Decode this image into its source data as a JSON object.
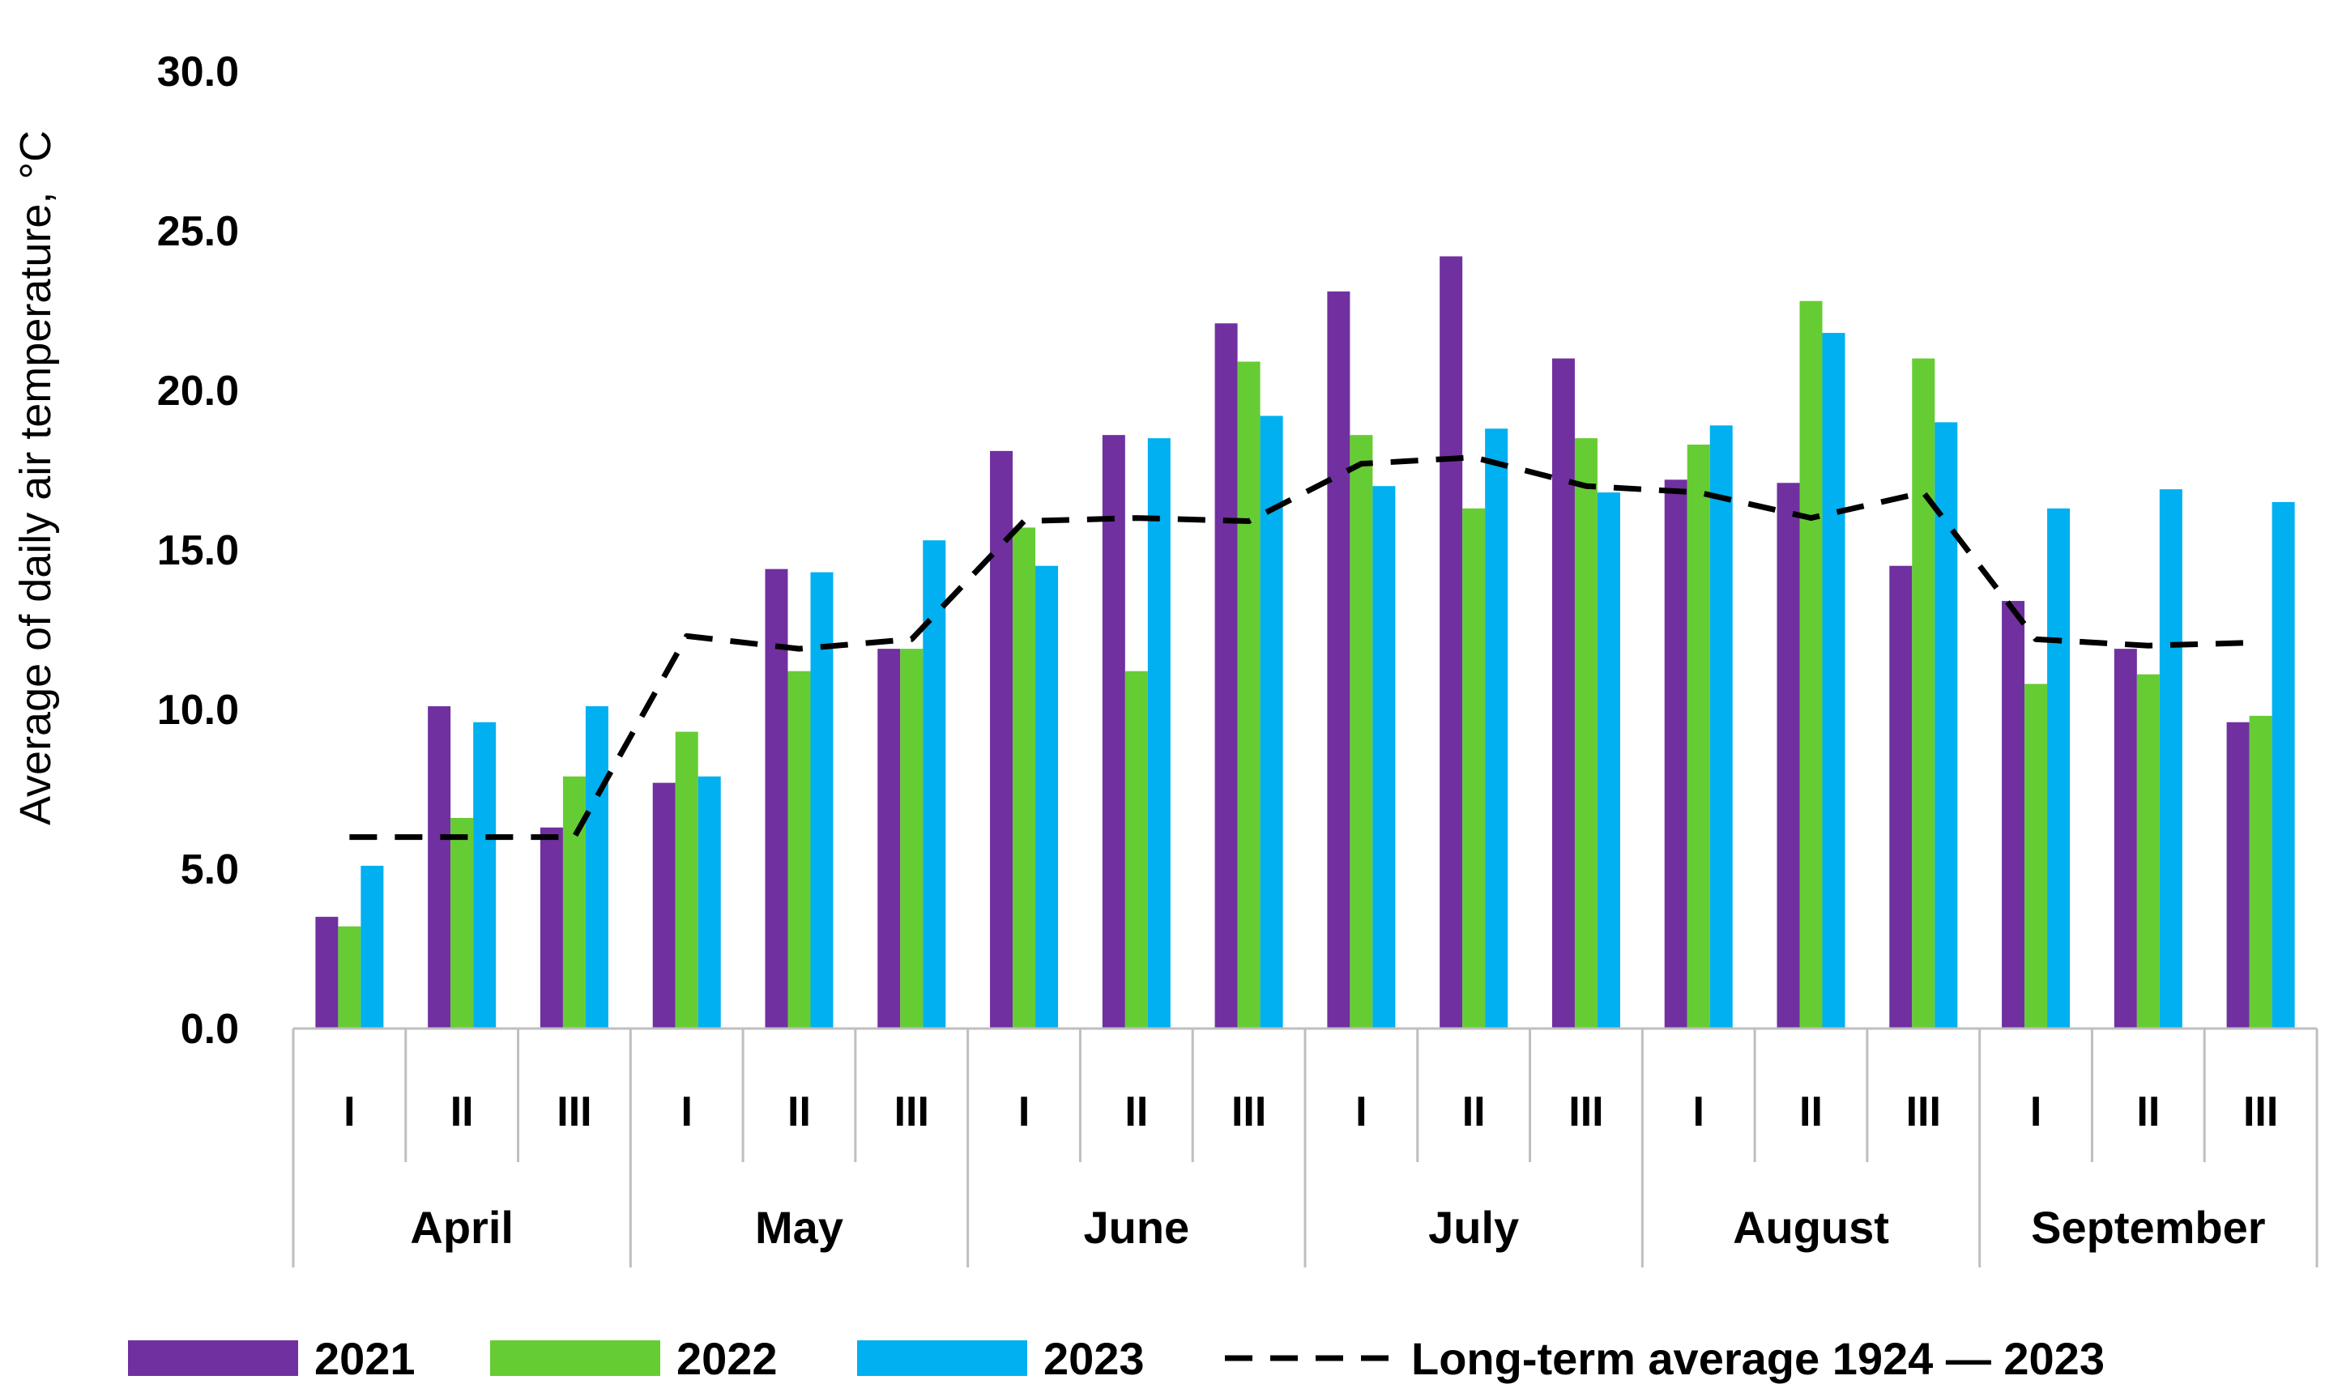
{
  "chart_data": {
    "type": "bar",
    "ylabel": "Average of daily air temperature, °C",
    "ylim": [
      0,
      30
    ],
    "yticks": [
      "0.0",
      "5.0",
      "10.0",
      "15.0",
      "20.0",
      "25.0",
      "30.0"
    ],
    "months": [
      "April",
      "May",
      "June",
      "July",
      "August",
      "September"
    ],
    "dekads": [
      "I",
      "II",
      "III"
    ],
    "series": [
      {
        "name": "2021",
        "color": "#7030A0",
        "values": [
          3.5,
          10.1,
          6.3,
          7.7,
          14.4,
          11.9,
          18.1,
          18.6,
          22.1,
          23.1,
          24.2,
          21.0,
          17.2,
          17.1,
          14.5,
          13.4,
          11.9,
          9.6
        ]
      },
      {
        "name": "2022",
        "color": "#66CC33",
        "values": [
          3.2,
          6.6,
          7.9,
          9.3,
          11.2,
          11.9,
          15.7,
          11.2,
          20.9,
          18.6,
          16.3,
          18.5,
          18.3,
          22.8,
          21.0,
          10.8,
          11.1,
          9.8
        ]
      },
      {
        "name": "2023",
        "color": "#00B0F0",
        "values": [
          5.1,
          9.6,
          10.1,
          7.9,
          14.3,
          15.3,
          14.5,
          18.5,
          19.2,
          17.0,
          18.8,
          16.8,
          18.9,
          21.8,
          19.0,
          16.3,
          16.9,
          16.5
        ]
      }
    ],
    "line": {
      "name": "Long-term average 1924 — 2023",
      "color": "#000000",
      "values": [
        6.0,
        6.0,
        6.0,
        12.3,
        11.9,
        12.2,
        15.9,
        16.0,
        15.9,
        17.7,
        17.9,
        17.0,
        16.8,
        16.0,
        16.8,
        12.2,
        12.0,
        12.1
      ]
    },
    "legend_position": "bottom",
    "grid": false
  }
}
